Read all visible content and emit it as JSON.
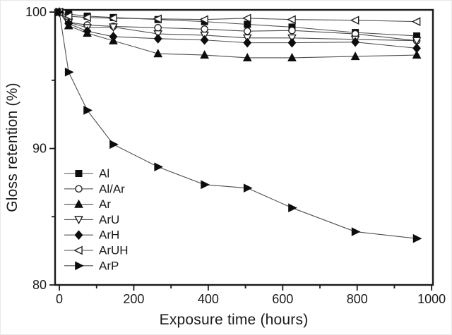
{
  "figure": {
    "x_axis": {
      "label": "Exposure time (hours)",
      "min": 0,
      "max": 1000,
      "major_ticks": [
        0,
        200,
        400,
        600,
        800,
        1000
      ],
      "minor_ticks": [
        100,
        300,
        500,
        700,
        900
      ]
    },
    "y_axis": {
      "label": "Gloss retention (%)",
      "min": 80,
      "max": 100,
      "major_ticks": [
        80,
        90,
        100
      ],
      "minor_ticks": [
        85,
        95
      ]
    }
  },
  "chart_data": {
    "type": "line",
    "title": "",
    "xlabel": "Exposure time (hours)",
    "ylabel": "Gloss retention (%)",
    "xlim": [
      -11.4,
      1003.5
    ],
    "ylim": [
      80,
      100.16
    ],
    "grid": false,
    "legend_position": "lower-left",
    "x": [
      0,
      25,
      75,
      145,
      265,
      390,
      505,
      625,
      795,
      960
    ],
    "series": [
      {
        "name": "Al",
        "marker": "square",
        "filled": true,
        "values": [
          100,
          99.85,
          99.7,
          99.6,
          99.45,
          99.3,
          99.1,
          98.9,
          98.5,
          98.25
        ]
      },
      {
        "name": "Al/Ar",
        "marker": "circle",
        "filled": false,
        "values": [
          100,
          99.25,
          99.05,
          98.95,
          98.85,
          98.75,
          98.6,
          98.65,
          98.4,
          97.9
        ]
      },
      {
        "name": "Ar",
        "marker": "triangle-up",
        "filled": true,
        "values": [
          100,
          99.0,
          98.45,
          97.9,
          96.95,
          96.85,
          96.65,
          96.65,
          96.75,
          96.85
        ]
      },
      {
        "name": "ArU",
        "marker": "triangle-down",
        "filled": false,
        "values": [
          100,
          99.25,
          98.85,
          98.9,
          98.4,
          98.3,
          98.1,
          98.1,
          98.0,
          97.9
        ]
      },
      {
        "name": "ArH",
        "marker": "diamond",
        "filled": true,
        "values": [
          100,
          99.15,
          98.6,
          98.2,
          98.05,
          97.95,
          97.75,
          97.75,
          97.8,
          97.35
        ]
      },
      {
        "name": "ArUH",
        "marker": "triangle-left",
        "filled": false,
        "values": [
          100,
          99.7,
          99.6,
          99.55,
          99.5,
          99.45,
          99.55,
          99.45,
          99.4,
          99.3
        ]
      },
      {
        "name": "ArP",
        "marker": "triangle-right",
        "filled": true,
        "values": [
          100,
          95.6,
          92.8,
          90.3,
          88.65,
          87.35,
          87.1,
          85.65,
          83.9,
          83.4
        ]
      }
    ],
    "colors": {
      "line": "#4f4f4f",
      "marker_fill": "#0d0d0d",
      "marker_open_fill": "#ffffff",
      "marker_stroke": "#222222",
      "frame": "#1a1a1a",
      "text": "#1a1a1a"
    }
  }
}
